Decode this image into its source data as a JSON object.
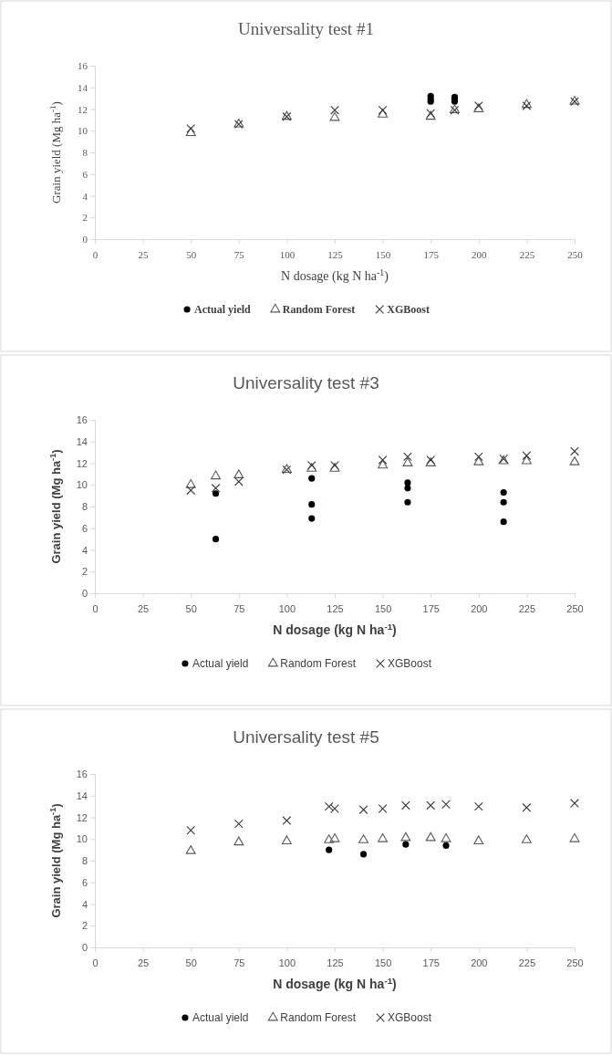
{
  "chart_data": [
    {
      "type": "scatter",
      "title": "Universality test #1",
      "xlabel": "N dosage (kg N ha$^{-1}$)",
      "ylabel": "Grain yield (Mg ha$^{-1}$)",
      "xlim": [
        0,
        250
      ],
      "xticks": [
        0,
        25,
        50,
        75,
        100,
        125,
        150,
        175,
        200,
        225,
        250
      ],
      "ylim": [
        0,
        16
      ],
      "yticks": [
        0,
        2,
        4,
        6,
        8,
        10,
        12,
        14,
        16
      ],
      "grid": false,
      "legend": "bottom",
      "series": [
        {
          "name": "Actual yield",
          "color": "#000000",
          "marker": "circle",
          "x": [
            175,
            175,
            175,
            187.5,
            187.5,
            187.5
          ],
          "values": [
            13.2,
            12.9,
            12.7,
            13.1,
            12.9,
            12.7
          ]
        },
        {
          "name": "Random Forest",
          "color": "#595959",
          "marker": "triangle",
          "x": [
            50,
            75,
            100,
            125,
            150,
            175,
            187.5,
            200,
            225,
            250
          ],
          "values": [
            9.8,
            10.6,
            11.3,
            11.2,
            11.5,
            11.3,
            11.9,
            12.0,
            12.4,
            12.7
          ]
        },
        {
          "name": "XGBoost",
          "color": "#3a3a3a",
          "marker": "cross",
          "x": [
            50,
            75,
            100,
            125,
            150,
            175,
            187.5,
            200,
            225,
            250
          ],
          "values": [
            10.2,
            10.6,
            11.3,
            11.9,
            11.9,
            11.6,
            11.9,
            12.3,
            12.3,
            12.7
          ]
        }
      ]
    },
    {
      "type": "scatter",
      "title": "Universality test #3",
      "xlabel": "N dosage (kg N ha$^{-1}$)",
      "ylabel": "Grain yield (Mg ha$^{-1}$)",
      "xlim": [
        0,
        250
      ],
      "xticks": [
        0,
        25,
        50,
        75,
        100,
        125,
        150,
        175,
        200,
        225,
        250
      ],
      "ylim": [
        0,
        16
      ],
      "yticks": [
        0,
        2,
        4,
        6,
        8,
        10,
        12,
        14,
        16
      ],
      "grid": false,
      "legend": "bottom",
      "series": [
        {
          "name": "Actual yield",
          "color": "#000000",
          "marker": "circle",
          "x": [
            63,
            63,
            113,
            113,
            113,
            163,
            163,
            163,
            213,
            213,
            213
          ],
          "values": [
            9.2,
            5.0,
            10.6,
            8.2,
            6.9,
            10.2,
            9.7,
            8.4,
            9.3,
            8.4,
            6.6
          ]
        },
        {
          "name": "Random Forest",
          "color": "#595959",
          "marker": "triangle",
          "x": [
            50,
            63,
            75,
            100,
            113,
            125,
            150,
            163,
            175,
            200,
            213,
            225,
            250
          ],
          "values": [
            10.0,
            10.8,
            10.9,
            11.4,
            11.5,
            11.5,
            11.8,
            12.0,
            12.0,
            12.1,
            12.2,
            12.2,
            12.1
          ]
        },
        {
          "name": "XGBoost",
          "color": "#3a3a3a",
          "marker": "cross",
          "x": [
            50,
            63,
            75,
            100,
            113,
            125,
            150,
            163,
            175,
            200,
            213,
            225,
            250
          ],
          "values": [
            9.5,
            9.7,
            10.3,
            11.4,
            11.8,
            11.8,
            12.3,
            12.6,
            12.3,
            12.6,
            12.4,
            12.7,
            13.1
          ]
        }
      ]
    },
    {
      "type": "scatter",
      "title": "Universality test #5",
      "xlabel": "N dosage (kg N ha$^{-1}$)",
      "ylabel": "Grain yield (Mg ha$^{-1}$)",
      "xlim": [
        0,
        250
      ],
      "xticks": [
        0,
        25,
        50,
        75,
        100,
        125,
        150,
        175,
        200,
        225,
        250
      ],
      "ylim": [
        0,
        16
      ],
      "yticks": [
        0,
        2,
        4,
        6,
        8,
        10,
        12,
        14,
        16
      ],
      "grid": false,
      "legend": "bottom",
      "series": [
        {
          "name": "Actual yield",
          "color": "#000000",
          "marker": "circle",
          "x": [
            122,
            140,
            162,
            183
          ],
          "values": [
            9.0,
            8.6,
            9.5,
            9.4
          ]
        },
        {
          "name": "Random Forest",
          "color": "#595959",
          "marker": "triangle",
          "x": [
            50,
            75,
            100,
            122,
            125,
            140,
            150,
            162,
            175,
            183,
            200,
            225,
            250
          ],
          "values": [
            8.9,
            9.7,
            9.8,
            9.9,
            10.0,
            9.9,
            10.0,
            10.1,
            10.1,
            10.0,
            9.8,
            9.9,
            10.0
          ]
        },
        {
          "name": "XGBoost",
          "color": "#3a3a3a",
          "marker": "cross",
          "x": [
            50,
            75,
            100,
            122,
            125,
            140,
            150,
            162,
            175,
            183,
            200,
            225,
            250
          ],
          "values": [
            10.8,
            11.4,
            11.7,
            13.0,
            12.8,
            12.7,
            12.8,
            13.1,
            13.1,
            13.2,
            13.0,
            12.9,
            13.3
          ]
        }
      ]
    }
  ]
}
